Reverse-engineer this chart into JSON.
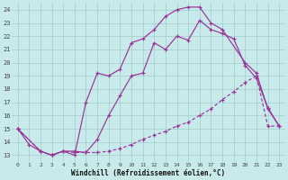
{
  "xlabel": "Windchill (Refroidissement éolien,°C)",
  "xlim": [
    -0.5,
    23.5
  ],
  "ylim": [
    12.5,
    24.5
  ],
  "xticks": [
    0,
    1,
    2,
    3,
    4,
    5,
    6,
    7,
    8,
    9,
    10,
    11,
    12,
    13,
    14,
    15,
    16,
    17,
    18,
    19,
    20,
    21,
    22,
    23
  ],
  "yticks": [
    13,
    14,
    15,
    16,
    17,
    18,
    19,
    20,
    21,
    22,
    23,
    24
  ],
  "background_color": "#c8eaea",
  "grid_color": "#a0cccc",
  "line_color": "#993399",
  "line1_x": [
    0,
    1,
    2,
    3,
    4,
    5,
    6,
    7,
    8,
    9,
    10,
    11,
    12,
    13,
    14,
    15,
    16,
    17,
    18,
    20,
    21,
    22,
    23
  ],
  "line1_y": [
    15,
    13.8,
    13.3,
    13.0,
    13.3,
    13.0,
    17.0,
    19.2,
    19.0,
    19.5,
    21.5,
    21.8,
    22.5,
    23.5,
    24.0,
    24.2,
    24.2,
    23.0,
    22.5,
    20.0,
    19.2,
    16.5,
    15.2
  ],
  "line2_x": [
    0,
    2,
    3,
    4,
    5,
    6,
    7,
    8,
    9,
    10,
    11,
    12,
    13,
    14,
    15,
    16,
    17,
    18,
    19,
    20,
    21,
    22,
    23
  ],
  "line2_y": [
    15,
    13.3,
    13.0,
    13.3,
    13.3,
    13.2,
    14.2,
    16.0,
    17.5,
    19.0,
    19.2,
    21.5,
    21.0,
    22.0,
    21.7,
    23.2,
    22.5,
    22.2,
    21.8,
    19.8,
    18.8,
    16.6,
    15.2
  ],
  "line3_x": [
    0,
    2,
    3,
    4,
    5,
    6,
    7,
    8,
    9,
    10,
    11,
    12,
    13,
    14,
    15,
    16,
    17,
    18,
    19,
    20,
    21,
    22,
    23
  ],
  "line3_y": [
    15,
    13.3,
    13.0,
    13.3,
    13.2,
    13.2,
    13.2,
    13.3,
    13.5,
    13.8,
    14.2,
    14.5,
    14.8,
    15.2,
    15.5,
    16.0,
    16.5,
    17.2,
    17.8,
    18.5,
    19.0,
    15.2,
    15.2
  ]
}
